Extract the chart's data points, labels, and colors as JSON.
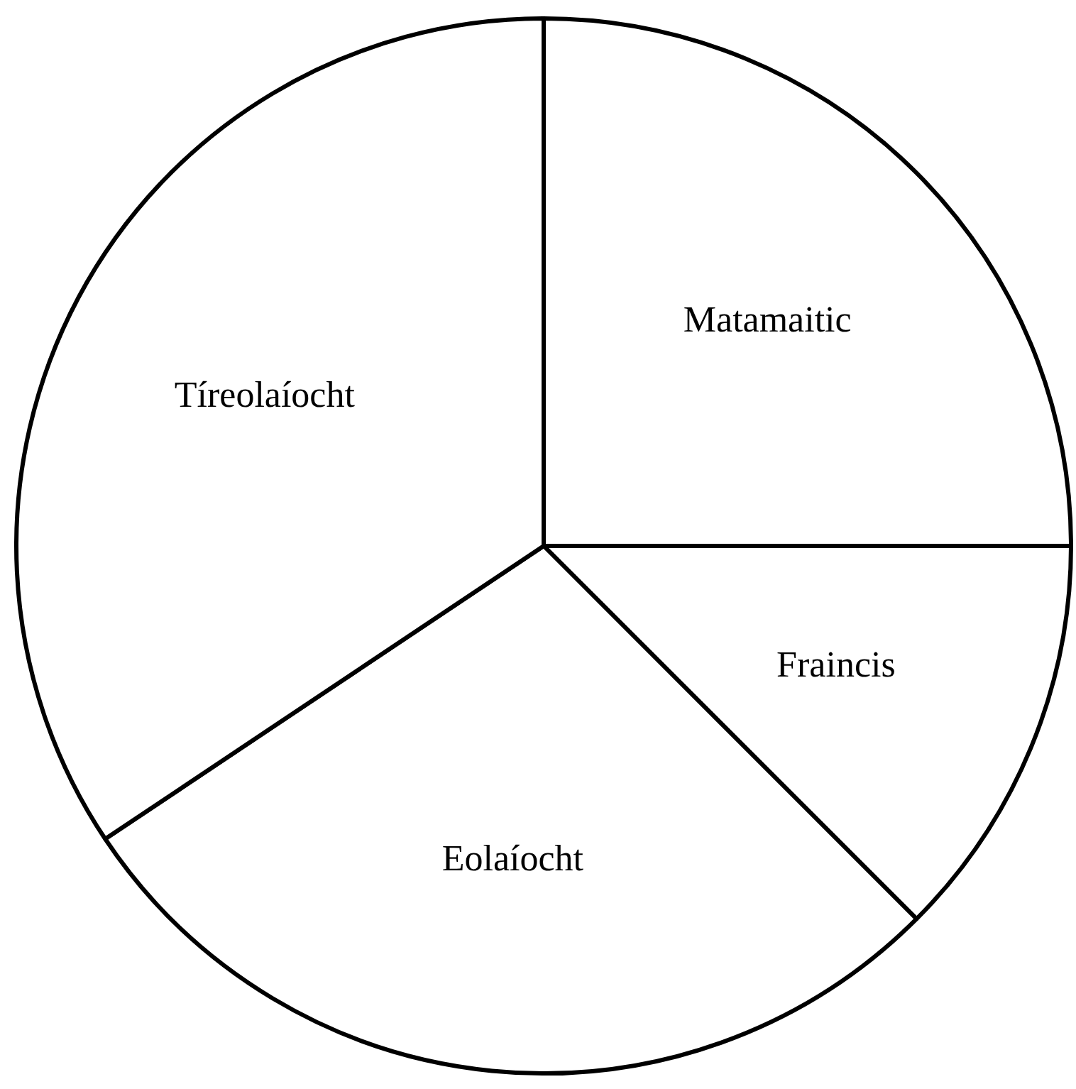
{
  "chart_data": {
    "type": "pie",
    "categories": [
      "Matamaitic",
      "Fraincis",
      "Eolaíocht",
      "Tíreolaíocht"
    ],
    "values": [
      25,
      12.5,
      28.125,
      34.375
    ],
    "colors": [
      "#ffffff",
      "#ffffff",
      "#ffffff",
      "#ffffff"
    ],
    "legend": false
  }
}
